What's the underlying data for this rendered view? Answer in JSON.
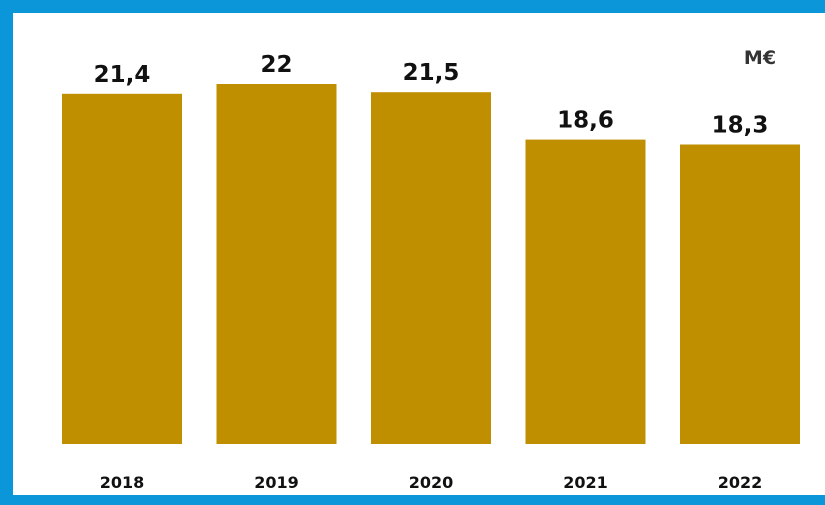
{
  "chart_data": {
    "type": "bar",
    "categories": [
      "2018",
      "2019",
      "2020",
      "2021",
      "2022"
    ],
    "values": [
      21.4,
      22,
      21.5,
      18.6,
      18.3
    ],
    "value_labels": [
      "21,4",
      "22",
      "21,5",
      "18,6",
      "18,3"
    ],
    "unit": "M€",
    "title": "",
    "xlabel": "",
    "ylabel": "",
    "ylim": [
      0,
      22
    ],
    "grid": false,
    "legend": "none",
    "bar_color": "#bf8f00",
    "frame_color": "#0b96d9"
  }
}
